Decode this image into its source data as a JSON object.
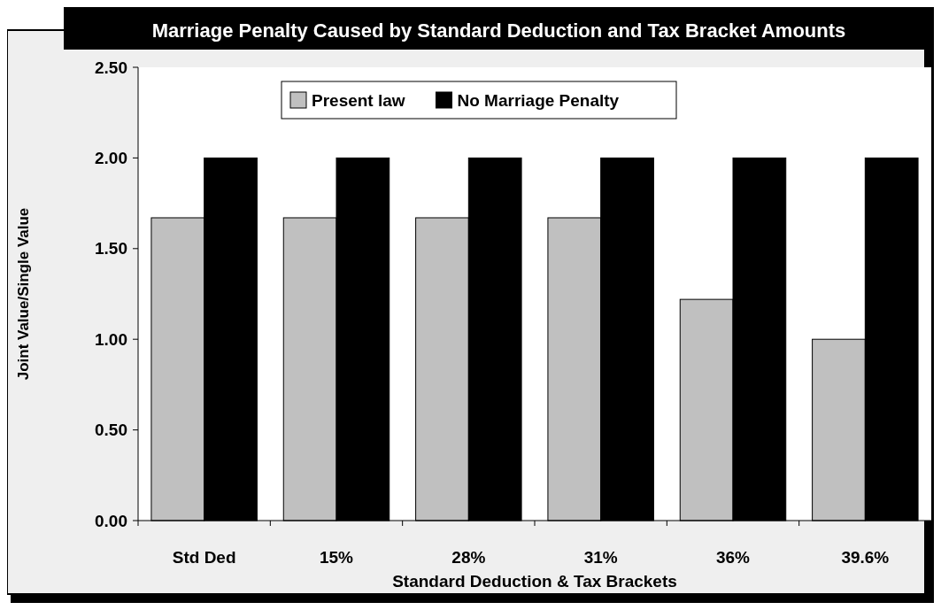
{
  "chart_data": {
    "type": "bar",
    "title": "Marriage Penalty Caused by Standard Deduction and Tax Bracket Amounts",
    "xlabel": "Standard Deduction & Tax Brackets",
    "ylabel": "Joint Value/Single Value",
    "categories": [
      "Std Ded",
      "15%",
      "28%",
      "31%",
      "36%",
      "39.6%"
    ],
    "series": [
      {
        "name": "Present law",
        "color": "#c0c0c0",
        "values": [
          1.67,
          1.67,
          1.67,
          1.67,
          1.22,
          1.0
        ]
      },
      {
        "name": "No Marriage Penalty",
        "color": "#000000",
        "values": [
          2.0,
          2.0,
          2.0,
          2.0,
          2.0,
          2.0
        ]
      }
    ],
    "ylim": [
      0,
      2.5
    ],
    "yticks": [
      {
        "value": 0,
        "label": "0.00"
      },
      {
        "value": 0.5,
        "label": "0.50"
      },
      {
        "value": 1,
        "label": "1.00"
      },
      {
        "value": 1.5,
        "label": "1.50"
      },
      {
        "value": 2,
        "label": "2.00"
      },
      {
        "value": 2.5,
        "label": "2.50"
      }
    ],
    "grid": false,
    "legend": "top"
  }
}
